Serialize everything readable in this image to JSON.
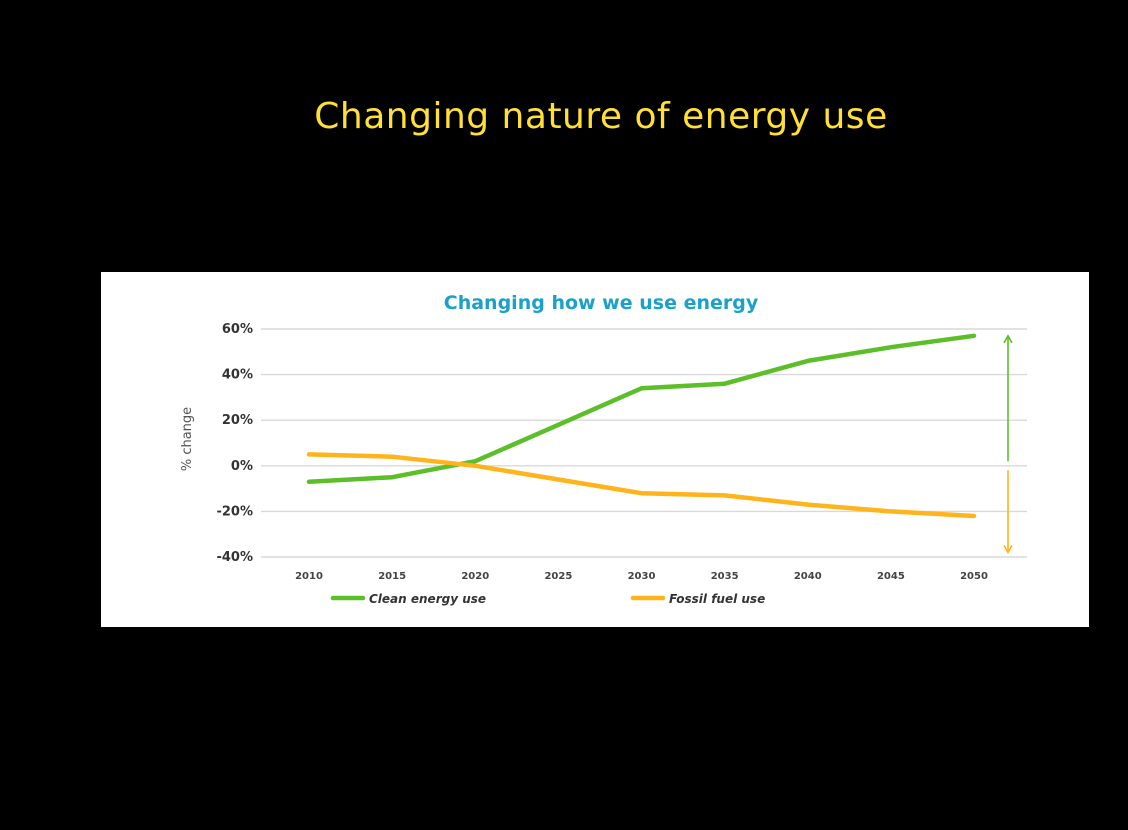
{
  "slide": {
    "title": "Changing nature of energy use"
  },
  "colors": {
    "background": "#000000",
    "slide_title": "#ffe033",
    "chart_title": "#1aa1c9",
    "clean": "#5cbf2a",
    "fossil": "#ffb41c",
    "grid": "#d9d9d9"
  },
  "chart_data": {
    "type": "line",
    "title": "Changing how we use energy",
    "xlabel": "",
    "ylabel": "% change",
    "x": [
      2010,
      2015,
      2020,
      2025,
      2030,
      2035,
      2040,
      2045,
      2050
    ],
    "x_tick_labels": [
      "2010",
      "2015",
      "2020",
      "2025",
      "2030",
      "2035",
      "2040",
      "2045",
      "2050"
    ],
    "y_ticks": [
      60,
      40,
      20,
      0,
      -20,
      -40
    ],
    "y_tick_labels": [
      "60%",
      "40%",
      "20%",
      "0%",
      "-20%",
      "-40%"
    ],
    "ylim": [
      -40,
      60
    ],
    "grid": true,
    "legend_position": "bottom",
    "series": [
      {
        "name": "Clean energy use",
        "color": "#5cbf2a",
        "values": [
          -7,
          -5,
          2,
          18,
          34,
          36,
          46,
          52,
          57
        ]
      },
      {
        "name": "Fossil fuel use",
        "color": "#ffb41c",
        "values": [
          5,
          4,
          0,
          -6,
          -12,
          -13,
          -17,
          -20,
          -22
        ]
      }
    ],
    "annotations": [
      {
        "type": "arrow-up",
        "color": "#5cbf2a",
        "from": 2,
        "to": 57
      },
      {
        "type": "arrow-down",
        "color": "#ffb41c",
        "from": -2,
        "to": -38
      }
    ]
  }
}
